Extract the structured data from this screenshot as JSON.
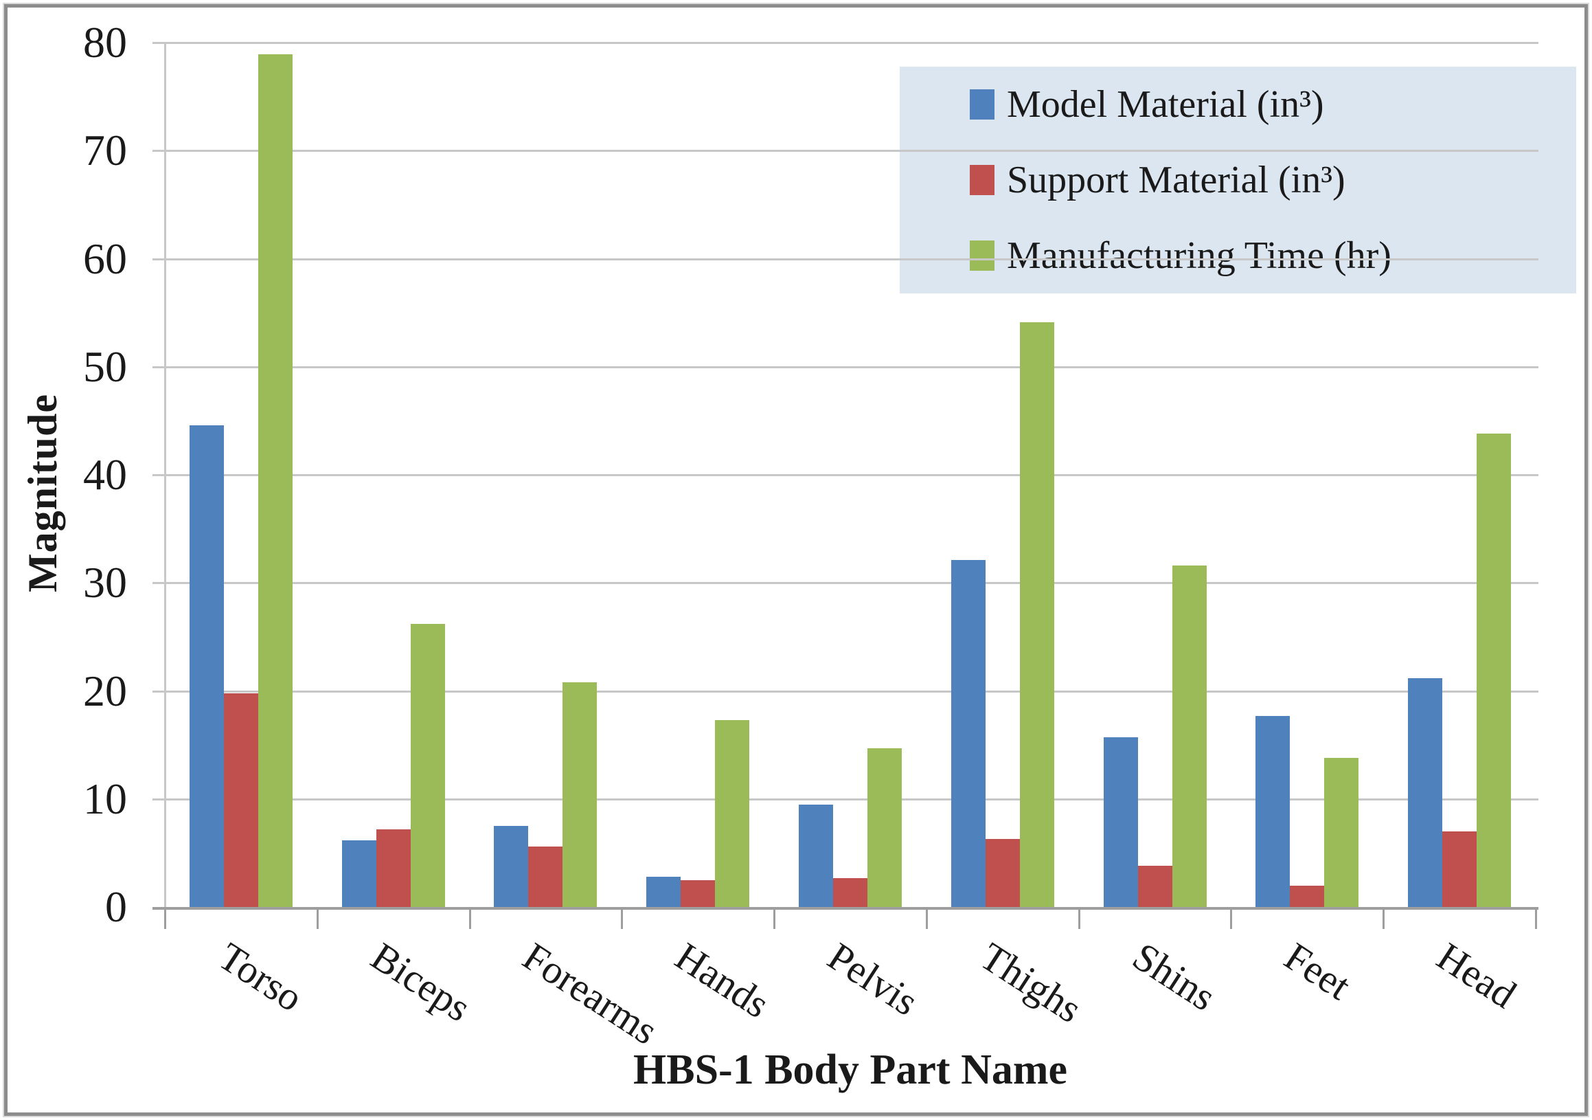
{
  "figure": {
    "y_axis_title": "Magnitude",
    "x_axis_title": "HBS-1 Body Part Name"
  },
  "legend": {
    "background": "#dce6f1",
    "items": [
      {
        "label": "Model Material (in³)",
        "color": "#4f81bd"
      },
      {
        "label": "Support Material (in³)",
        "color": "#c0504d"
      },
      {
        "label": "Manufacturing Time (hr)",
        "color": "#9bbb59"
      }
    ]
  },
  "chart_data": {
    "type": "bar",
    "title": "",
    "xlabel": "HBS-1 Body Part Name",
    "ylabel": "Magnitude",
    "categories": [
      "Torso",
      "Biceps",
      "Forearms",
      "Hands",
      "Pelvis",
      "Thighs",
      "Shins",
      "Feet",
      "Head"
    ],
    "series": [
      {
        "name": "Model Material (in³)",
        "color": "#4f81bd",
        "values": [
          44.6,
          6.2,
          7.5,
          2.8,
          9.5,
          32.1,
          15.7,
          17.7,
          21.2
        ]
      },
      {
        "name": "Support Material (in³)",
        "color": "#c0504d",
        "values": [
          19.8,
          7.2,
          5.6,
          2.5,
          2.7,
          6.3,
          3.8,
          2.0,
          7.0
        ]
      },
      {
        "name": "Manufacturing Time (hr)",
        "color": "#9bbb59",
        "values": [
          78.9,
          26.2,
          20.8,
          17.3,
          14.7,
          54.1,
          31.6,
          13.8,
          43.8
        ]
      }
    ],
    "ylim": [
      0,
      80
    ],
    "y_ticks": [
      0,
      10,
      20,
      30,
      40,
      50,
      60,
      70,
      80
    ],
    "grid": true,
    "legend_position": "top-right"
  },
  "colors": {
    "gridline": "#c7c7c7",
    "axis": "#9e9e9e",
    "text": "#1a1a1a",
    "border": "#8c8c8c",
    "background": "#ffffff"
  }
}
